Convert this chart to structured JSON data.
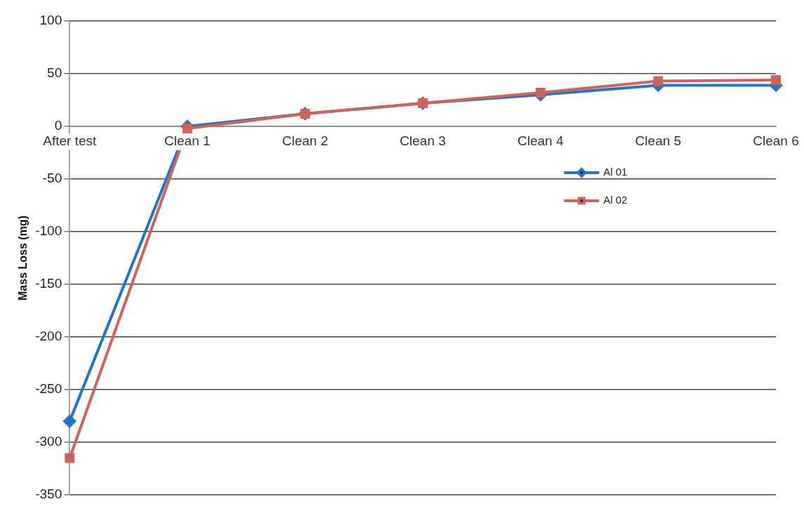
{
  "chart_data": {
    "type": "line",
    "ylabel": "Mass Loss (mg)",
    "categories": [
      "After test",
      "Clean 1",
      "Clean 2",
      "Clean 3",
      "Clean 4",
      "Clean 5",
      "Clean 6"
    ],
    "series": [
      {
        "name": "Al 01",
        "color": "#1f77c4",
        "marker": "diamond",
        "values": [
          -280,
          0,
          12,
          22,
          30,
          39,
          39
        ]
      },
      {
        "name": "Al 02",
        "color": "#d0625c",
        "marker": "square",
        "values": [
          -315,
          -2,
          12,
          22,
          32,
          43,
          44
        ]
      }
    ],
    "ylim": [
      -350,
      100
    ],
    "yticks": [
      -350,
      -300,
      -250,
      -200,
      -150,
      -100,
      -50,
      0,
      50,
      100
    ],
    "grid": "y",
    "legend": "right"
  }
}
